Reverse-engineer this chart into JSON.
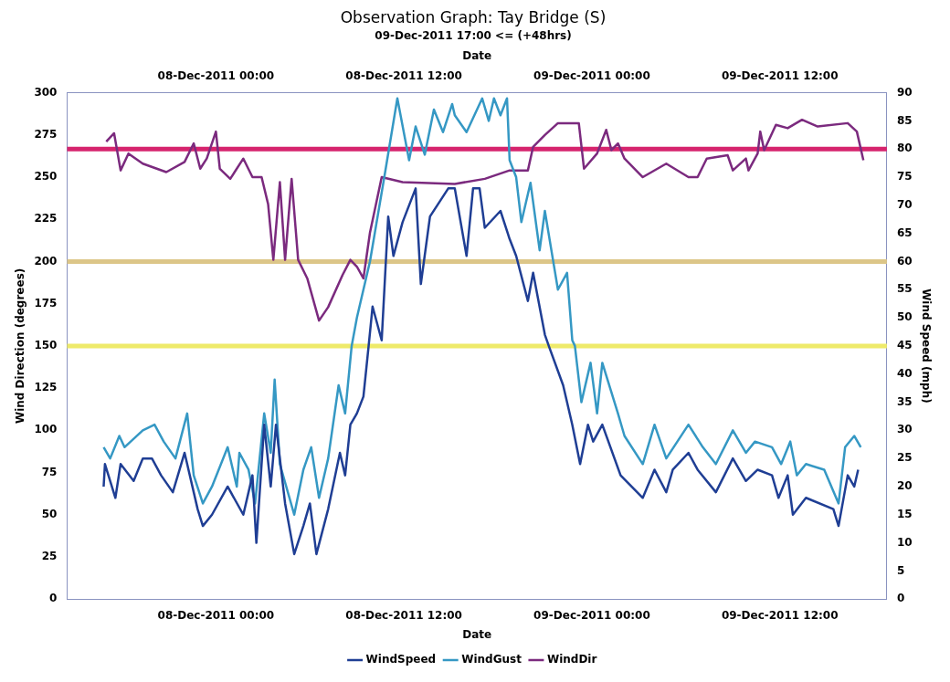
{
  "chart_data": {
    "type": "line",
    "title": "Observation Graph: Tay Bridge (S)",
    "subtitle": "09-Dec-2011 17:00 <= (+48hrs)",
    "xlabel": "Date",
    "x2label": "Date",
    "ylabel": "Wind Direction (degrees)",
    "y2label": "Wind Speed (mph)",
    "xlim": [
      "2011-12-07T14:30",
      "2011-12-09T18:50"
    ],
    "xticks": [
      {
        "value": "2011-12-08T00:00",
        "label": "08-Dec-2011 00:00"
      },
      {
        "value": "2011-12-08T12:00",
        "label": "08-Dec-2011 12:00"
      },
      {
        "value": "2011-12-09T00:00",
        "label": "09-Dec-2011 00:00"
      },
      {
        "value": "2011-12-09T12:00",
        "label": "09-Dec-2011 12:00"
      }
    ],
    "x2lim": [
      "2011-12-07T14:30",
      "2011-12-09T18:50"
    ],
    "x2ticks": [
      {
        "value": "2011-12-08T00:00",
        "label": "08-Dec-2011 00:00"
      },
      {
        "value": "2011-12-08T12:00",
        "label": "08-Dec-2011 12:00"
      },
      {
        "value": "2011-12-09T00:00",
        "label": "09-Dec-2011 00:00"
      },
      {
        "value": "2011-12-09T12:00",
        "label": "09-Dec-2011 12:00"
      }
    ],
    "ylim": [
      0,
      300
    ],
    "yticks": [
      0,
      25,
      50,
      75,
      100,
      125,
      150,
      175,
      200,
      225,
      250,
      275,
      300
    ],
    "y2lim": [
      0,
      90
    ],
    "y2ticks": [
      0,
      5,
      10,
      15,
      20,
      25,
      30,
      35,
      40,
      45,
      50,
      55,
      60,
      65,
      70,
      75,
      80,
      85,
      90
    ],
    "grid": false,
    "legend": "bottom",
    "marker": "none",
    "line_style": "solid",
    "ref_lines": [
      {
        "axis": "y2",
        "value": 80,
        "label": null,
        "color": "#d6246e"
      },
      {
        "axis": "y2",
        "value": 60,
        "label": null,
        "color": "#dcc688"
      },
      {
        "axis": "y2",
        "value": 45,
        "label": null,
        "color": "#eeea6a"
      }
    ],
    "series": [
      {
        "name": "WindSpeed",
        "color": "#1f3e94",
        "axis": "y2",
        "x": [
          "2011-12-07T16:50",
          "2011-12-07T16:55",
          "2011-12-07T17:35",
          "2011-12-07T17:55",
          "2011-12-07T18:45",
          "2011-12-07T19:20",
          "2011-12-07T19:55",
          "2011-12-07T20:30",
          "2011-12-07T21:15",
          "2011-12-07T22:00",
          "2011-12-07T22:50",
          "2011-12-07T23:10",
          "2011-12-07T23:45",
          "2011-12-08T00:45",
          "2011-12-08T01:45",
          "2011-12-08T02:20",
          "2011-12-08T02:35",
          "2011-12-08T03:05",
          "2011-12-08T03:30",
          "2011-12-08T03:50",
          "2011-12-08T04:25",
          "2011-12-08T05:00",
          "2011-12-08T05:35",
          "2011-12-08T06:00",
          "2011-12-08T06:25",
          "2011-12-08T07:10",
          "2011-12-08T07:55",
          "2011-12-08T08:15",
          "2011-12-08T08:35",
          "2011-12-08T09:00",
          "2011-12-08T09:25",
          "2011-12-08T09:45",
          "2011-12-08T10:00",
          "2011-12-08T10:35",
          "2011-12-08T11:00",
          "2011-12-08T11:20",
          "2011-12-08T11:55",
          "2011-12-08T12:45",
          "2011-12-08T13:05",
          "2011-12-08T13:40",
          "2011-12-08T14:50",
          "2011-12-08T15:15",
          "2011-12-08T16:00",
          "2011-12-08T16:25",
          "2011-12-08T16:50",
          "2011-12-08T17:10",
          "2011-12-08T18:10",
          "2011-12-08T18:45",
          "2011-12-08T19:10",
          "2011-12-08T19:55",
          "2011-12-08T20:15",
          "2011-12-08T21:00",
          "2011-12-08T21:15",
          "2011-12-08T22:10",
          "2011-12-08T22:45",
          "2011-12-08T23:15",
          "2011-12-08T23:45",
          "2011-12-09T00:05",
          "2011-12-09T00:40",
          "2011-12-09T01:50",
          "2011-12-09T03:15",
          "2011-12-09T04:00",
          "2011-12-09T04:45",
          "2011-12-09T05:10",
          "2011-12-09T06:10",
          "2011-12-09T06:45",
          "2011-12-09T07:55",
          "2011-12-09T09:00",
          "2011-12-09T09:50",
          "2011-12-09T10:35",
          "2011-12-09T11:30",
          "2011-12-09T11:55",
          "2011-12-09T12:30",
          "2011-12-09T12:50",
          "2011-12-09T13:40",
          "2011-12-09T15:25",
          "2011-12-09T15:45",
          "2011-12-09T16:20",
          "2011-12-09T16:45",
          "2011-12-09T17:00"
        ],
        "values": [
          20,
          24,
          18,
          24,
          21,
          25,
          25,
          22,
          19,
          26,
          16,
          13,
          15,
          20,
          15,
          22,
          10,
          31,
          20,
          31,
          17,
          8,
          13,
          17,
          8,
          16,
          26,
          22,
          31,
          33,
          36,
          45,
          52,
          46,
          68,
          61,
          67,
          73,
          56,
          68,
          73,
          73,
          61,
          73,
          73,
          66,
          69,
          64,
          61,
          53,
          58,
          47,
          45,
          38,
          31,
          24,
          31,
          28,
          31,
          22,
          18,
          23,
          19,
          23,
          26,
          23,
          19,
          25,
          21,
          23,
          22,
          18,
          22,
          15,
          18,
          16,
          13,
          22,
          20,
          23
        ]
      },
      {
        "name": "WindGust",
        "color": "#3598c4",
        "axis": "y2",
        "x": [
          "2011-12-07T16:50",
          "2011-12-07T17:15",
          "2011-12-07T17:50",
          "2011-12-07T18:10",
          "2011-12-07T19:20",
          "2011-12-07T20:05",
          "2011-12-07T20:40",
          "2011-12-07T21:25",
          "2011-12-07T22:10",
          "2011-12-07T22:35",
          "2011-12-07T23:10",
          "2011-12-07T23:45",
          "2011-12-08T00:45",
          "2011-12-08T01:20",
          "2011-12-08T01:30",
          "2011-12-08T02:05",
          "2011-12-08T02:30",
          "2011-12-08T03:05",
          "2011-12-08T03:30",
          "2011-12-08T03:45",
          "2011-12-08T04:05",
          "2011-12-08T05:00",
          "2011-12-08T05:35",
          "2011-12-08T06:05",
          "2011-12-08T06:35",
          "2011-12-08T07:10",
          "2011-12-08T07:50",
          "2011-12-08T08:15",
          "2011-12-08T08:40",
          "2011-12-08T09:00",
          "2011-12-08T09:50",
          "2011-12-08T10:45",
          "2011-12-08T11:35",
          "2011-12-08T12:20",
          "2011-12-08T12:45",
          "2011-12-08T13:20",
          "2011-12-08T13:55",
          "2011-12-08T14:30",
          "2011-12-08T15:05",
          "2011-12-08T15:15",
          "2011-12-08T16:00",
          "2011-12-08T17:00",
          "2011-12-08T17:25",
          "2011-12-08T17:45",
          "2011-12-08T18:10",
          "2011-12-08T18:35",
          "2011-12-08T18:45",
          "2011-12-08T19:10",
          "2011-12-08T19:30",
          "2011-12-08T20:05",
          "2011-12-08T20:40",
          "2011-12-08T21:00",
          "2011-12-08T21:25",
          "2011-12-08T21:50",
          "2011-12-08T22:25",
          "2011-12-08T22:45",
          "2011-12-08T22:55",
          "2011-12-08T23:20",
          "2011-12-08T23:55",
          "2011-12-09T00:20",
          "2011-12-09T00:40",
          "2011-12-09T01:40",
          "2011-12-09T02:05",
          "2011-12-09T03:15",
          "2011-12-09T04:00",
          "2011-12-09T04:45",
          "2011-12-09T06:10",
          "2011-12-09T07:05",
          "2011-12-09T07:55",
          "2011-12-09T09:00",
          "2011-12-09T09:50",
          "2011-12-09T10:25",
          "2011-12-09T11:30",
          "2011-12-09T12:05",
          "2011-12-09T12:40",
          "2011-12-09T13:05",
          "2011-12-09T13:40",
          "2011-12-09T14:50",
          "2011-12-09T15:45",
          "2011-12-09T16:10",
          "2011-12-09T16:45",
          "2011-12-09T17:10"
        ],
        "values": [
          27,
          25,
          29,
          27,
          30,
          31,
          28,
          25,
          33,
          22,
          17,
          20,
          27,
          20,
          26,
          23,
          17,
          33,
          26,
          39,
          24,
          15,
          23,
          27,
          18,
          25,
          38,
          33,
          45,
          50,
          60,
          75,
          89,
          78,
          84,
          79,
          87,
          83,
          88,
          86,
          83,
          89,
          85,
          89,
          86,
          89,
          78,
          75,
          67,
          74,
          62,
          69,
          62,
          55,
          58,
          46,
          45,
          35,
          42,
          33,
          42,
          33,
          29,
          24,
          31,
          25,
          31,
          27,
          24,
          30,
          26,
          28,
          27,
          24,
          28,
          22,
          24,
          23,
          17,
          27,
          29,
          27
        ]
      },
      {
        "name": "WindDir",
        "color": "#7b2a7e",
        "x": [
          "2011-12-07T17:00",
          "2011-12-07T17:30",
          "2011-12-07T17:55",
          "2011-12-07T18:25",
          "2011-12-07T19:20",
          "2011-12-07T20:50",
          "2011-12-07T22:00",
          "2011-12-07T22:35",
          "2011-12-07T23:00",
          "2011-12-07T23:25",
          "2011-12-08T00:00",
          "2011-12-08T00:15",
          "2011-12-08T00:55",
          "2011-12-08T01:45",
          "2011-12-08T02:20",
          "2011-12-08T02:55",
          "2011-12-08T03:20",
          "2011-12-08T03:40",
          "2011-12-08T04:05",
          "2011-12-08T04:25",
          "2011-12-08T04:50",
          "2011-12-08T05:15",
          "2011-12-08T05:50",
          "2011-12-08T06:35",
          "2011-12-08T07:10",
          "2011-12-08T08:05",
          "2011-12-08T08:35",
          "2011-12-08T09:00",
          "2011-12-08T09:25",
          "2011-12-08T09:50",
          "2011-12-08T10:35",
          "2011-12-08T11:55",
          "2011-12-08T15:15",
          "2011-12-08T17:10",
          "2011-12-08T18:45",
          "2011-12-08T19:55",
          "2011-12-08T20:15",
          "2011-12-08T21:00",
          "2011-12-08T21:50",
          "2011-12-08T23:10",
          "2011-12-08T23:30",
          "2011-12-09T00:20",
          "2011-12-09T00:55",
          "2011-12-09T01:15",
          "2011-12-09T01:40",
          "2011-12-09T02:05",
          "2011-12-09T03:15",
          "2011-12-09T04:45",
          "2011-12-09T06:10",
          "2011-12-09T06:45",
          "2011-12-09T07:20",
          "2011-12-09T08:40",
          "2011-12-09T09:00",
          "2011-12-09T09:50",
          "2011-12-09T10:00",
          "2011-12-09T10:35",
          "2011-12-09T10:45",
          "2011-12-09T11:00",
          "2011-12-09T11:45",
          "2011-12-09T12:30",
          "2011-12-09T13:25",
          "2011-12-09T14:25",
          "2011-12-09T16:20",
          "2011-12-09T16:55",
          "2011-12-09T17:20"
        ],
        "values": [
          271,
          276,
          254,
          264,
          258,
          253,
          259,
          270,
          255,
          261,
          277,
          255,
          249,
          261,
          250,
          250,
          234,
          201,
          247,
          201,
          249,
          201,
          190,
          165,
          173,
          192,
          201,
          197,
          190,
          217,
          250,
          247,
          246,
          249,
          254,
          254,
          268,
          275,
          282,
          282,
          255,
          264,
          278,
          266,
          270,
          261,
          250,
          258,
          250,
          250,
          261,
          263,
          254,
          261,
          254,
          264,
          277,
          266,
          281,
          279,
          284,
          280,
          282,
          277,
          260
        ]
      }
    ]
  }
}
